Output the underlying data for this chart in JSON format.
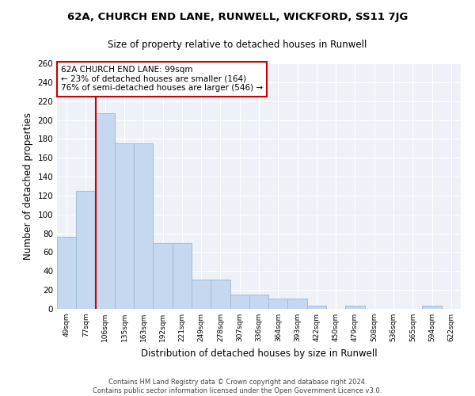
{
  "title": "62A, CHURCH END LANE, RUNWELL, WICKFORD, SS11 7JG",
  "subtitle": "Size of property relative to detached houses in Runwell",
  "xlabel": "Distribution of detached houses by size in Runwell",
  "ylabel": "Number of detached properties",
  "categories": [
    "49sqm",
    "77sqm",
    "106sqm",
    "135sqm",
    "163sqm",
    "192sqm",
    "221sqm",
    "249sqm",
    "278sqm",
    "307sqm",
    "336sqm",
    "364sqm",
    "393sqm",
    "422sqm",
    "450sqm",
    "479sqm",
    "508sqm",
    "536sqm",
    "565sqm",
    "594sqm",
    "622sqm"
  ],
  "values": [
    76,
    125,
    207,
    175,
    175,
    70,
    70,
    31,
    31,
    15,
    15,
    11,
    11,
    3,
    0,
    3,
    0,
    0,
    0,
    3,
    0
  ],
  "bar_color": "#c5d8f0",
  "bar_edge_color": "#a0bcd8",
  "bar_width": 1.0,
  "red_line_color": "#cc0000",
  "red_line_x": 1.5,
  "property_label": "62A CHURCH END LANE: 99sqm",
  "annotation_line1": "← 23% of detached houses are smaller (164)",
  "annotation_line2": "76% of semi-detached houses are larger (546) →",
  "annotation_box_color": "#ffffff",
  "annotation_box_edge": "#cc0000",
  "ylim": [
    0,
    260
  ],
  "yticks": [
    0,
    20,
    40,
    60,
    80,
    100,
    120,
    140,
    160,
    180,
    200,
    220,
    240,
    260
  ],
  "background_color": "#eef2f8",
  "grid_color": "#ffffff",
  "footer_line1": "Contains HM Land Registry data © Crown copyright and database right 2024.",
  "footer_line2": "Contains public sector information licensed under the Open Government Licence v3.0."
}
